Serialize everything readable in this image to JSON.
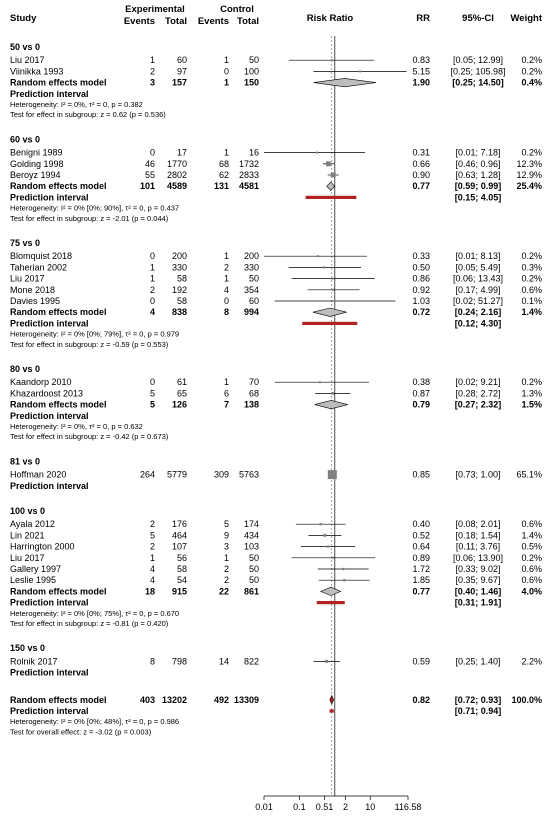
{
  "header": {
    "study": "Study",
    "experimental": "Experimental",
    "control": "Control",
    "events_e": "Events",
    "total_e": "Total",
    "events_c": "Events",
    "total_c": "Total",
    "risk_ratio": "Risk Ratio",
    "rr": "RR",
    "ci": "95%-CI",
    "weight": "Weight"
  },
  "colors": {
    "prediction_bar": "#b22222",
    "study_box": "#808080",
    "overall_diamond": "#b22222"
  },
  "chart_data": {
    "type": "forest",
    "scale": "log",
    "xlim": [
      0.01,
      116.58
    ],
    "x_ticks": [
      "0.01",
      "0.1",
      "0.51",
      "2",
      "10",
      "116.58"
    ],
    "x_tick_values": [
      0.01,
      0.1,
      0.51,
      2,
      10,
      116.58
    ],
    "reference_line": 1,
    "overall_effect_line": 0.82,
    "subgroups": [
      {
        "title": "50 vs 0",
        "studies": [
          {
            "study": "Liu 2017",
            "e_events": "1",
            "e_total": "60",
            "c_events": "1",
            "c_total": "50",
            "rr": 0.83,
            "lower": 0.05,
            "upper": 12.99,
            "rr_text": "0.83",
            "ci_text": "[0.05; 12.99]",
            "weight_text": "0.2%",
            "weight": 0.2
          },
          {
            "study": "Viinikka 1993",
            "e_events": "2",
            "e_total": "97",
            "c_events": "0",
            "c_total": "100",
            "rr": 5.15,
            "lower": 0.25,
            "upper": 105.98,
            "rr_text": "5.15",
            "ci_text": "[0.25; 105.98]",
            "weight_text": "0.2%",
            "weight": 0.2
          }
        ],
        "random": {
          "label": "Random effects model",
          "e_events": "3",
          "e_total": "157",
          "c_events": "1",
          "c_total": "150",
          "rr": 1.9,
          "lower": 0.25,
          "upper": 14.5,
          "rr_text": "1.90",
          "ci_text": "[0.25; 14.50]",
          "weight_text": "0.4%"
        },
        "prediction": {
          "label": "Prediction interval",
          "lower": null,
          "upper": null,
          "ci_text": ""
        },
        "heterogeneity": "Heterogeneity: I² = 0%, τ² = 0, p = 0.382",
        "test": "Test for effect in subgroup: z = 0.62 (p = 0.536)"
      },
      {
        "title": "60 vs 0",
        "studies": [
          {
            "study": "Benigni 1989",
            "e_events": "0",
            "e_total": "17",
            "c_events": "1",
            "c_total": "16",
            "rr": 0.31,
            "lower": 0.01,
            "upper": 7.18,
            "rr_text": "0.31",
            "ci_text": "[0.01; 7.18]",
            "weight_text": "0.2%",
            "weight": 0.2
          },
          {
            "study": "Golding 1998",
            "e_events": "46",
            "e_total": "1770",
            "c_events": "68",
            "c_total": "1732",
            "rr": 0.66,
            "lower": 0.46,
            "upper": 0.96,
            "rr_text": "0.66",
            "ci_text": "[0.46; 0.96]",
            "weight_text": "12.3%",
            "weight": 12.3
          },
          {
            "study": "Beroyz 1994",
            "e_events": "55",
            "e_total": "2802",
            "c_events": "62",
            "c_total": "2833",
            "rr": 0.9,
            "lower": 0.63,
            "upper": 1.28,
            "rr_text": "0.90",
            "ci_text": "[0.63; 1.28]",
            "weight_text": "12.9%",
            "weight": 12.9
          }
        ],
        "random": {
          "label": "Random effects model",
          "e_events": "101",
          "e_total": "4589",
          "c_events": "131",
          "c_total": "4581",
          "rr": 0.77,
          "lower": 0.59,
          "upper": 0.99,
          "rr_text": "0.77",
          "ci_text": "[0.59; 0.99]",
          "weight_text": "25.4%"
        },
        "prediction": {
          "label": "Prediction interval",
          "lower": 0.15,
          "upper": 4.05,
          "ci_text": "[0.15; 4.05]"
        },
        "heterogeneity": "Heterogeneity: I² = 0% [0%; 90%], τ² = 0, p = 0.437",
        "test": "Test for effect in subgroup: z = -2.01 (p = 0.044)"
      },
      {
        "title": "75 vs 0",
        "studies": [
          {
            "study": "Blomquist 2018",
            "e_events": "0",
            "e_total": "200",
            "c_events": "1",
            "c_total": "200",
            "rr": 0.33,
            "lower": 0.01,
            "upper": 8.13,
            "rr_text": "0.33",
            "ci_text": "[0.01; 8.13]",
            "weight_text": "0.2%",
            "weight": 0.2
          },
          {
            "study": "Taherian 2002",
            "e_events": "1",
            "e_total": "330",
            "c_events": "2",
            "c_total": "330",
            "rr": 0.5,
            "lower": 0.05,
            "upper": 5.49,
            "rr_text": "0.50",
            "ci_text": "[0.05; 5.49]",
            "weight_text": "0.3%",
            "weight": 0.3
          },
          {
            "study": "Liu 2017",
            "e_events": "1",
            "e_total": "58",
            "c_events": "1",
            "c_total": "50",
            "rr": 0.86,
            "lower": 0.06,
            "upper": 13.43,
            "rr_text": "0.86",
            "ci_text": "[0.06; 13.43]",
            "weight_text": "0.2%",
            "weight": 0.2
          },
          {
            "study": "Mone 2018",
            "e_events": "2",
            "e_total": "192",
            "c_events": "4",
            "c_total": "354",
            "rr": 0.92,
            "lower": 0.17,
            "upper": 4.99,
            "rr_text": "0.92",
            "ci_text": "[0.17; 4.99]",
            "weight_text": "0.6%",
            "weight": 0.6
          },
          {
            "study": "Davies 1995",
            "e_events": "0",
            "e_total": "58",
            "c_events": "0",
            "c_total": "60",
            "rr": 1.03,
            "lower": 0.02,
            "upper": 51.27,
            "rr_text": "1.03",
            "ci_text": "[0.02; 51.27]",
            "weight_text": "0.1%",
            "weight": 0.1
          }
        ],
        "random": {
          "label": "Random effects model",
          "e_events": "4",
          "e_total": "838",
          "c_events": "8",
          "c_total": "994",
          "rr": 0.72,
          "lower": 0.24,
          "upper": 2.16,
          "rr_text": "0.72",
          "ci_text": "[0.24; 2.16]",
          "weight_text": "1.4%"
        },
        "prediction": {
          "label": "Prediction interval",
          "lower": 0.12,
          "upper": 4.3,
          "ci_text": "[0.12; 4.30]"
        },
        "heterogeneity": "Heterogeneity: I² = 0% [0%; 79%], τ² = 0, p = 0.979",
        "test": "Test for effect in subgroup: z = -0.59 (p = 0.553)"
      },
      {
        "title": "80 vs 0",
        "studies": [
          {
            "study": "Kaandorp 2010",
            "e_events": "0",
            "e_total": "61",
            "c_events": "1",
            "c_total": "70",
            "rr": 0.38,
            "lower": 0.02,
            "upper": 9.21,
            "rr_text": "0.38",
            "ci_text": "[0.02; 9.21]",
            "weight_text": "0.2%",
            "weight": 0.2
          },
          {
            "study": "Khazardoost 2013",
            "e_events": "5",
            "e_total": "65",
            "c_events": "6",
            "c_total": "68",
            "rr": 0.87,
            "lower": 0.28,
            "upper": 2.72,
            "rr_text": "0.87",
            "ci_text": "[0.28; 2.72]",
            "weight_text": "1.3%",
            "weight": 1.3
          }
        ],
        "random": {
          "label": "Random effects model",
          "e_events": "5",
          "e_total": "126",
          "c_events": "7",
          "c_total": "138",
          "rr": 0.79,
          "lower": 0.27,
          "upper": 2.32,
          "rr_text": "0.79",
          "ci_text": "[0.27; 2.32]",
          "weight_text": "1.5%"
        },
        "prediction": {
          "label": "Prediction interval",
          "lower": null,
          "upper": null,
          "ci_text": ""
        },
        "heterogeneity": "Heterogeneity: I² = 0%, τ² = 0, p = 0.632",
        "test": "Test for effect in subgroup: z = -0.42 (p = 0.673)"
      },
      {
        "title": "81 vs 0",
        "studies": [
          {
            "study": "Hoffman 2020",
            "e_events": "264",
            "e_total": "5779",
            "c_events": "309",
            "c_total": "5763",
            "rr": 0.85,
            "lower": 0.73,
            "upper": 1.0,
            "rr_text": "0.85",
            "ci_text": "[0.73; 1.00]",
            "weight_text": "65.1%",
            "weight": 65.1
          }
        ],
        "random": null,
        "prediction": {
          "label": "Prediction interval",
          "lower": null,
          "upper": null,
          "ci_text": ""
        },
        "heterogeneity": "",
        "test": ""
      },
      {
        "title": "100 vs 0",
        "studies": [
          {
            "study": "Ayala 2012",
            "e_events": "2",
            "e_total": "176",
            "c_events": "5",
            "c_total": "174",
            "rr": 0.4,
            "lower": 0.08,
            "upper": 2.01,
            "rr_text": "0.40",
            "ci_text": "[0.08; 2.01]",
            "weight_text": "0.6%",
            "weight": 0.6
          },
          {
            "study": "Lin 2021",
            "e_events": "5",
            "e_total": "464",
            "c_events": "9",
            "c_total": "434",
            "rr": 0.52,
            "lower": 0.18,
            "upper": 1.54,
            "rr_text": "0.52",
            "ci_text": "[0.18; 1.54]",
            "weight_text": "1.4%",
            "weight": 1.4
          },
          {
            "study": "Harrington 2000",
            "e_events": "2",
            "e_total": "107",
            "c_events": "3",
            "c_total": "103",
            "rr": 0.64,
            "lower": 0.11,
            "upper": 3.76,
            "rr_text": "0.64",
            "ci_text": "[0.11; 3.76]",
            "weight_text": "0.5%",
            "weight": 0.5
          },
          {
            "study": "Liu 2017",
            "e_events": "1",
            "e_total": "56",
            "c_events": "1",
            "c_total": "50",
            "rr": 0.89,
            "lower": 0.06,
            "upper": 13.9,
            "rr_text": "0.89",
            "ci_text": "[0.06; 13.90]",
            "weight_text": "0.2%",
            "weight": 0.2
          },
          {
            "study": "Gallery 1997",
            "e_events": "4",
            "e_total": "58",
            "c_events": "2",
            "c_total": "50",
            "rr": 1.72,
            "lower": 0.33,
            "upper": 9.02,
            "rr_text": "1.72",
            "ci_text": "[0.33; 9.02]",
            "weight_text": "0.6%",
            "weight": 0.6
          },
          {
            "study": "Leslie 1995",
            "e_events": "4",
            "e_total": "54",
            "c_events": "2",
            "c_total": "50",
            "rr": 1.85,
            "lower": 0.35,
            "upper": 9.67,
            "rr_text": "1.85",
            "ci_text": "[0.35; 9.67]",
            "weight_text": "0.6%",
            "weight": 0.6
          }
        ],
        "random": {
          "label": "Random effects model",
          "e_events": "18",
          "e_total": "915",
          "c_events": "22",
          "c_total": "861",
          "rr": 0.77,
          "lower": 0.4,
          "upper": 1.46,
          "rr_text": "0.77",
          "ci_text": "[0.40; 1.46]",
          "weight_text": "4.0%"
        },
        "prediction": {
          "label": "Prediction interval",
          "lower": 0.31,
          "upper": 1.91,
          "ci_text": "[0.31; 1.91]"
        },
        "heterogeneity": "Heterogeneity: I² = 0% [0%; 75%], τ² = 0, p = 0.670",
        "test": "Test for effect in subgroup: z = -0.81 (p = 0.420)"
      },
      {
        "title": "150 vs 0",
        "studies": [
          {
            "study": "Rolnik 2017",
            "e_events": "8",
            "e_total": "798",
            "c_events": "14",
            "c_total": "822",
            "rr": 0.59,
            "lower": 0.25,
            "upper": 1.4,
            "rr_text": "0.59",
            "ci_text": "[0.25; 1.40]",
            "weight_text": "2.2%",
            "weight": 2.2
          }
        ],
        "random": null,
        "prediction": {
          "label": "Prediction interval",
          "lower": null,
          "upper": null,
          "ci_text": ""
        },
        "heterogeneity": "",
        "test": ""
      }
    ],
    "overall": {
      "random": {
        "label": "Random effects model",
        "e_events": "403",
        "e_total": "13202",
        "c_events": "492",
        "c_total": "13309",
        "rr": 0.82,
        "lower": 0.72,
        "upper": 0.93,
        "rr_text": "0.82",
        "ci_text": "[0.72; 0.93]",
        "weight_text": "100.0%"
      },
      "prediction": {
        "label": "Prediction interval",
        "lower": 0.71,
        "upper": 0.94,
        "ci_text": "[0.71; 0.94]"
      },
      "heterogeneity": "Heterogeneity: I² = 0% [0%; 48%], τ² = 0, p = 0.986",
      "test": "Test for overall effect: z = -3.02 (p = 0.003)"
    }
  }
}
